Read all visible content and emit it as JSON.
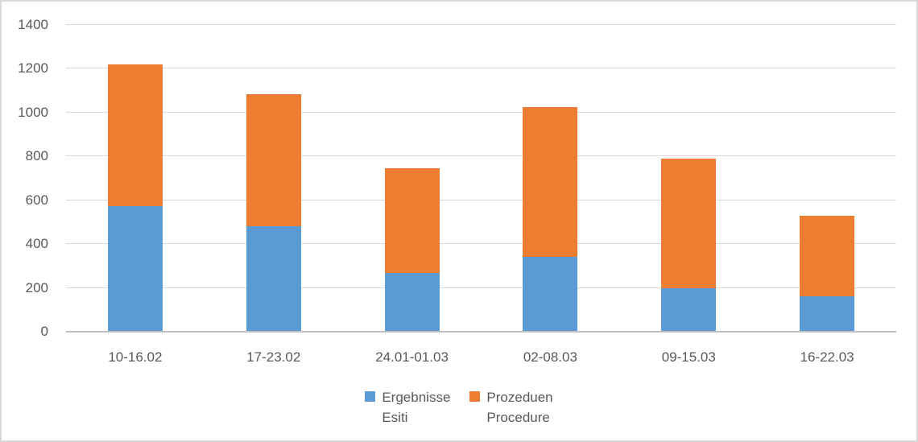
{
  "chart_data": {
    "type": "bar",
    "stacked": true,
    "title": "",
    "xlabel": "",
    "ylabel": "",
    "categories": [
      "10-16.02",
      "17-23.02",
      "24.01-01.03",
      "02-08.03",
      "09-15.03",
      "16-22.03"
    ],
    "series": [
      {
        "name": "Ergebnisse Esiti",
        "legend_lines": [
          "Ergebnisse",
          "Esiti"
        ],
        "color": "#5b9bd5",
        "values": [
          575,
          480,
          270,
          340,
          200,
          160
        ]
      },
      {
        "name": "Prozeduen Procedure",
        "legend_lines": [
          "Prozeduen",
          "Procedure"
        ],
        "color": "#ed7d31",
        "values": [
          645,
          605,
          475,
          685,
          590,
          370
        ]
      }
    ],
    "totals": [
      1220,
      1085,
      745,
      1025,
      790,
      530
    ],
    "ylim": [
      0,
      1400
    ],
    "yticks": [
      0,
      200,
      400,
      600,
      800,
      1000,
      1200,
      1400
    ],
    "grid": true,
    "legend_position": "bottom",
    "colors": {
      "gridline": "#d9d9d9",
      "axis_line": "#bfbfbf",
      "tick_label": "#595959",
      "chart_border": "#d9d9d9",
      "background": "#ffffff"
    }
  }
}
